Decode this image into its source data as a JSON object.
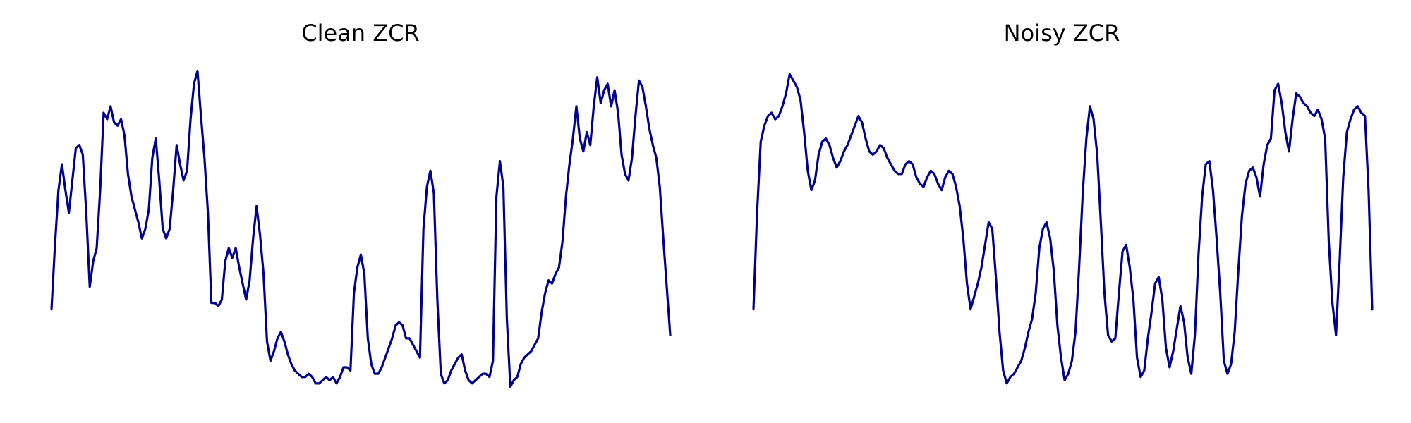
{
  "chart_data": [
    {
      "type": "line",
      "title": "Clean ZCR",
      "axes_visible": false,
      "grid": false,
      "ylim": [
        0.0,
        1.0
      ],
      "color": "#00008b",
      "values": [
        0.25,
        0.45,
        0.62,
        0.7,
        0.62,
        0.55,
        0.65,
        0.75,
        0.76,
        0.73,
        0.55,
        0.32,
        0.4,
        0.44,
        0.62,
        0.86,
        0.84,
        0.88,
        0.83,
        0.82,
        0.84,
        0.79,
        0.67,
        0.6,
        0.56,
        0.52,
        0.47,
        0.5,
        0.56,
        0.72,
        0.78,
        0.65,
        0.5,
        0.47,
        0.5,
        0.62,
        0.76,
        0.7,
        0.65,
        0.68,
        0.84,
        0.95,
        0.99,
        0.85,
        0.72,
        0.55,
        0.27,
        0.27,
        0.26,
        0.28,
        0.4,
        0.44,
        0.41,
        0.44,
        0.38,
        0.33,
        0.28,
        0.34,
        0.47,
        0.57,
        0.48,
        0.36,
        0.15,
        0.09,
        0.12,
        0.16,
        0.18,
        0.15,
        0.11,
        0.08,
        0.06,
        0.05,
        0.04,
        0.04,
        0.05,
        0.04,
        0.02,
        0.02,
        0.03,
        0.04,
        0.03,
        0.04,
        0.02,
        0.04,
        0.07,
        0.07,
        0.06,
        0.3,
        0.38,
        0.42,
        0.36,
        0.16,
        0.08,
        0.05,
        0.05,
        0.07,
        0.1,
        0.13,
        0.16,
        0.2,
        0.21,
        0.2,
        0.16,
        0.16,
        0.14,
        0.12,
        0.1,
        0.5,
        0.63,
        0.68,
        0.61,
        0.28,
        0.05,
        0.02,
        0.03,
        0.06,
        0.08,
        0.1,
        0.11,
        0.06,
        0.03,
        0.02,
        0.03,
        0.04,
        0.05,
        0.05,
        0.04,
        0.09,
        0.6,
        0.71,
        0.63,
        0.22,
        0.01,
        0.03,
        0.04,
        0.08,
        0.1,
        0.11,
        0.12,
        0.14,
        0.16,
        0.24,
        0.3,
        0.34,
        0.33,
        0.36,
        0.38,
        0.46,
        0.6,
        0.7,
        0.78,
        0.88,
        0.78,
        0.74,
        0.8,
        0.76,
        0.88,
        0.97,
        0.89,
        0.93,
        0.95,
        0.88,
        0.93,
        0.86,
        0.73,
        0.67,
        0.65,
        0.72,
        0.85,
        0.96,
        0.94,
        0.88,
        0.81,
        0.76,
        0.72,
        0.63,
        0.47,
        0.32,
        0.17
      ]
    },
    {
      "type": "line",
      "title": "Noisy ZCR",
      "axes_visible": false,
      "grid": false,
      "ylim": [
        0.0,
        1.0
      ],
      "color": "#00008b",
      "values": [
        0.25,
        0.55,
        0.77,
        0.82,
        0.85,
        0.86,
        0.84,
        0.85,
        0.88,
        0.92,
        0.98,
        0.96,
        0.94,
        0.9,
        0.8,
        0.68,
        0.62,
        0.65,
        0.73,
        0.77,
        0.78,
        0.76,
        0.72,
        0.69,
        0.71,
        0.74,
        0.76,
        0.79,
        0.82,
        0.85,
        0.83,
        0.78,
        0.74,
        0.73,
        0.74,
        0.76,
        0.75,
        0.72,
        0.7,
        0.68,
        0.67,
        0.67,
        0.7,
        0.71,
        0.7,
        0.66,
        0.64,
        0.63,
        0.66,
        0.68,
        0.67,
        0.64,
        0.62,
        0.66,
        0.68,
        0.67,
        0.63,
        0.57,
        0.47,
        0.33,
        0.25,
        0.29,
        0.33,
        0.38,
        0.45,
        0.52,
        0.5,
        0.35,
        0.18,
        0.06,
        0.02,
        0.04,
        0.05,
        0.07,
        0.09,
        0.13,
        0.18,
        0.22,
        0.3,
        0.44,
        0.5,
        0.52,
        0.47,
        0.37,
        0.2,
        0.1,
        0.03,
        0.05,
        0.09,
        0.18,
        0.38,
        0.61,
        0.78,
        0.88,
        0.84,
        0.73,
        0.52,
        0.3,
        0.17,
        0.15,
        0.16,
        0.3,
        0.43,
        0.45,
        0.38,
        0.28,
        0.1,
        0.04,
        0.06,
        0.16,
        0.24,
        0.33,
        0.35,
        0.28,
        0.13,
        0.07,
        0.12,
        0.19,
        0.26,
        0.21,
        0.1,
        0.05,
        0.17,
        0.42,
        0.6,
        0.7,
        0.71,
        0.62,
        0.47,
        0.3,
        0.09,
        0.05,
        0.08,
        0.18,
        0.37,
        0.54,
        0.64,
        0.68,
        0.69,
        0.66,
        0.6,
        0.7,
        0.76,
        0.78,
        0.93,
        0.95,
        0.89,
        0.8,
        0.74,
        0.84,
        0.92,
        0.91,
        0.89,
        0.88,
        0.86,
        0.85,
        0.87,
        0.84,
        0.78,
        0.46,
        0.27,
        0.17,
        0.4,
        0.66,
        0.8,
        0.84,
        0.87,
        0.88,
        0.86,
        0.85,
        0.62,
        0.25
      ]
    }
  ]
}
